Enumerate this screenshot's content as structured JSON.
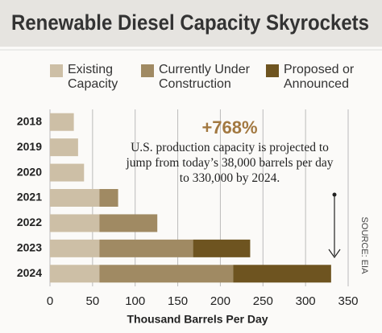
{
  "chart_data": {
    "type": "bar",
    "orientation": "horizontal",
    "stacked": true,
    "title": "Renewable Diesel Capacity Skyrockets",
    "categories": [
      "2018",
      "2019",
      "2020",
      "2021",
      "2022",
      "2023",
      "2024"
    ],
    "series": [
      {
        "name": "Existing Capacity",
        "color": "#cdbfa6",
        "values": [
          28,
          33,
          40,
          58,
          58,
          58,
          58
        ]
      },
      {
        "name": "Currently Under Construction",
        "color": "#a08a63",
        "values": [
          null,
          null,
          null,
          22,
          68,
          110,
          157
        ]
      },
      {
        "name": "Proposed or Announced",
        "color": "#6e5420",
        "values": [
          null,
          null,
          null,
          null,
          null,
          67,
          115
        ]
      }
    ],
    "xlim": [
      0,
      350
    ],
    "xticks": [
      0,
      50,
      100,
      150,
      200,
      250,
      300,
      350
    ],
    "xlabel": "Thousand Barrels Per Day",
    "grid": true,
    "annotation_headline": "+768%",
    "annotation_text": "U.S. production capacity is projected to jump from today’s 38,000 barrels per day to 330,000 by 2024.",
    "source": "SOURCE: EIA"
  }
}
